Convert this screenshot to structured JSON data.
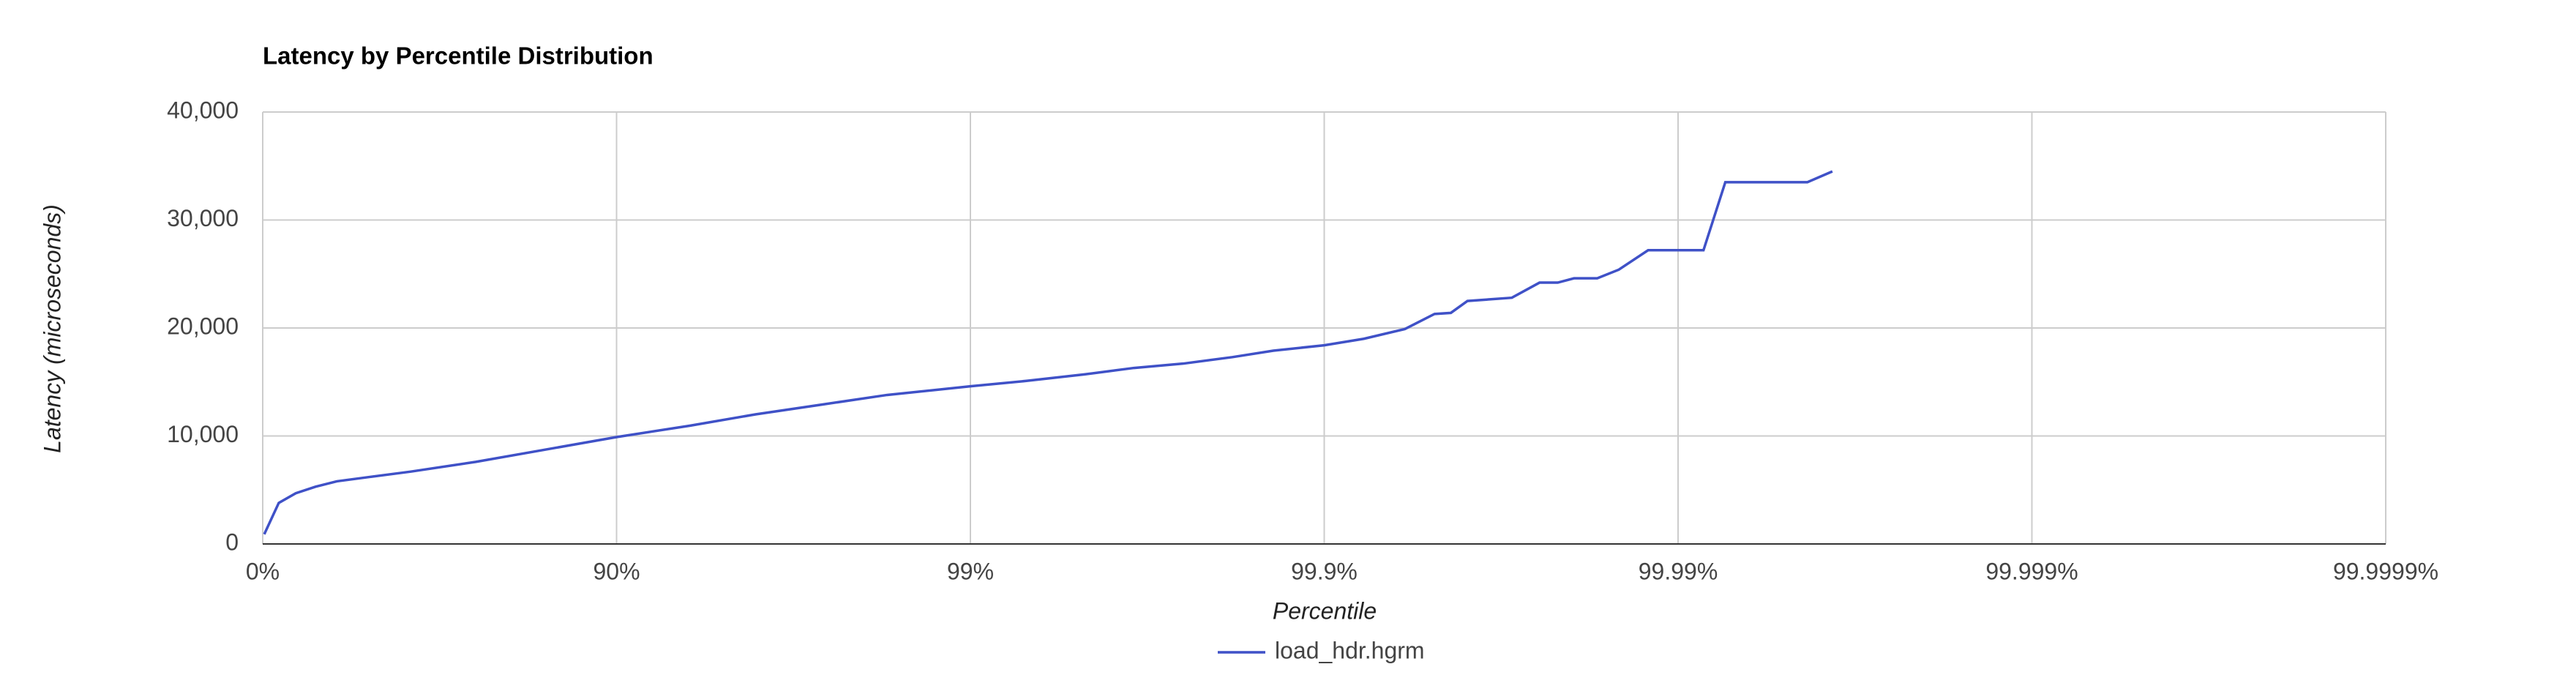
{
  "chart_data": {
    "type": "line",
    "title": "Latency by Percentile Distribution",
    "x_label": "Percentile",
    "y_label": "Latency (microseconds)",
    "x_log_scale": true,
    "grid": true,
    "legend_position": "bottom",
    "xlim": [
      1,
      1000000
    ],
    "xticks": [
      {
        "value": 1,
        "label": "0%"
      },
      {
        "value": 10,
        "label": "90%"
      },
      {
        "value": 100,
        "label": "99%"
      },
      {
        "value": 1000,
        "label": "99.9%"
      },
      {
        "value": 10000,
        "label": "99.99%"
      },
      {
        "value": 100000,
        "label": "99.999%"
      },
      {
        "value": 1000000,
        "label": "99.9999%"
      }
    ],
    "ylim": [
      0,
      40000
    ],
    "yticks": [
      {
        "value": 0,
        "label": "0"
      },
      {
        "value": 10000,
        "label": "10,000"
      },
      {
        "value": 20000,
        "label": "20,000"
      },
      {
        "value": 30000,
        "label": "30,000"
      },
      {
        "value": 40000,
        "label": "40,000"
      }
    ],
    "x": [
      1.01,
      1.11,
      1.24,
      1.41,
      1.62,
      2.0,
      2.62,
      4.0,
      6.2,
      10,
      16.1,
      24.7,
      37.9,
      58.2,
      100,
      144,
      210,
      290,
      399,
      550,
      718,
      1000,
      1294,
      1690,
      2050,
      2280,
      2540,
      3390,
      4060,
      4570,
      5080,
      5910,
      6800,
      8230,
      11800,
      13600,
      23200,
      27300
    ],
    "series": [
      {
        "name": "load_hdr.hgrm",
        "color": "#3f51c7",
        "values": [
          900,
          3800,
          4700,
          5300,
          5800,
          6200,
          6700,
          7600,
          8700,
          9900,
          10950,
          12000,
          12900,
          13800,
          14600,
          15100,
          15700,
          16300,
          16700,
          17300,
          17900,
          18400,
          19000,
          19900,
          21300,
          21400,
          22500,
          22800,
          24200,
          24200,
          24600,
          24600,
          25400,
          27200,
          27200,
          33500,
          33500,
          34500
        ]
      }
    ]
  }
}
